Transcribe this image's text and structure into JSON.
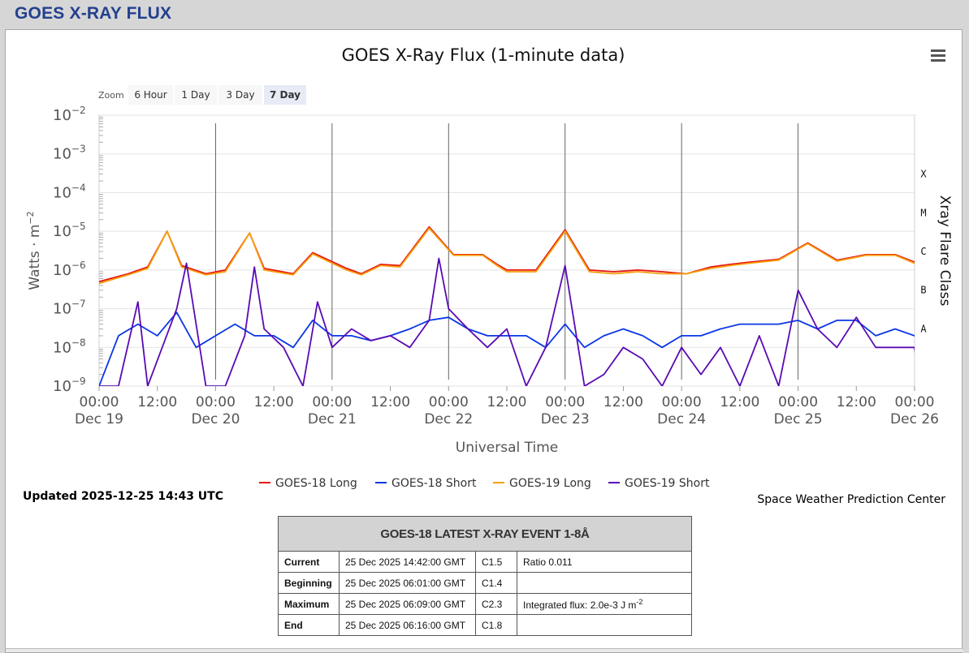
{
  "page": {
    "title": "GOES X-RAY FLUX"
  },
  "chart_data": {
    "type": "line",
    "title": "GOES X-Ray Flux (1-minute data)",
    "xlabel": "Universal Time",
    "ylabel": "Watts · m",
    "ylabel_sup": "−2",
    "right_label": "Xray Flare Class",
    "y_scale": "log",
    "ylim": [
      1e-09,
      0.01
    ],
    "y_ticks": [
      {
        "base": "10",
        "exp": "−2"
      },
      {
        "base": "10",
        "exp": "−3"
      },
      {
        "base": "10",
        "exp": "−4"
      },
      {
        "base": "10",
        "exp": "−5"
      },
      {
        "base": "10",
        "exp": "−6"
      },
      {
        "base": "10",
        "exp": "−7"
      },
      {
        "base": "10",
        "exp": "−8"
      },
      {
        "base": "10",
        "exp": "−9"
      }
    ],
    "flare_classes": [
      "X",
      "M",
      "C",
      "B",
      "A"
    ],
    "x_range": [
      "2025-12-19 00:00",
      "2025-12-26 00:00"
    ],
    "x_ticks": [
      {
        "time": "00:00",
        "date": "Dec 19"
      },
      {
        "time": "12:00",
        "date": ""
      },
      {
        "time": "00:00",
        "date": "Dec 20"
      },
      {
        "time": "12:00",
        "date": ""
      },
      {
        "time": "00:00",
        "date": "Dec 21"
      },
      {
        "time": "12:00",
        "date": ""
      },
      {
        "time": "00:00",
        "date": "Dec 22"
      },
      {
        "time": "12:00",
        "date": ""
      },
      {
        "time": "00:00",
        "date": "Dec 23"
      },
      {
        "time": "12:00",
        "date": ""
      },
      {
        "time": "00:00",
        "date": "Dec 24"
      },
      {
        "time": "12:00",
        "date": ""
      },
      {
        "time": "00:00",
        "date": "Dec 25"
      },
      {
        "time": "12:00",
        "date": ""
      },
      {
        "time": "00:00",
        "date": "Dec 26"
      }
    ],
    "grid": true,
    "legend_position": "bottom-center",
    "series": [
      {
        "name": "GOES-18 Long",
        "color": "#e8140e",
        "x_hours": [
          0,
          6,
          10,
          14,
          17,
          22,
          26,
          31,
          34,
          40,
          44,
          51,
          54,
          58,
          62,
          68,
          73,
          79,
          82,
          84,
          90,
          96,
          101,
          106,
          111,
          116,
          121,
          126,
          130,
          134,
          140,
          146,
          152,
          158,
          164,
          168,
          170
        ],
        "y": [
          5e-07,
          8e-07,
          1.2e-06,
          1e-05,
          1.3e-06,
          8e-07,
          1e-06,
          9e-06,
          1.1e-06,
          8e-07,
          2.8e-06,
          1.1e-06,
          8e-07,
          1.4e-06,
          1.3e-06,
          1.3e-05,
          2.5e-06,
          2.5e-06,
          1.4e-06,
          1e-06,
          1e-06,
          1.1e-05,
          1e-06,
          9e-07,
          1e-06,
          9e-07,
          8e-07,
          1.2e-06,
          1.4e-06,
          1.6e-06,
          1.9e-06,
          5e-06,
          1.8e-06,
          2.5e-06,
          2.5e-06,
          1.6e-06,
          1.6e-06
        ]
      },
      {
        "name": "GOES-18 Short",
        "color": "#0a36e6",
        "x_hours": [
          0,
          4,
          8,
          12,
          16,
          20,
          24,
          28,
          32,
          36,
          40,
          44,
          48,
          52,
          56,
          60,
          64,
          68,
          72,
          76,
          80,
          84,
          88,
          92,
          96,
          100,
          104,
          108,
          112,
          116,
          120,
          124,
          128,
          132,
          136,
          140,
          144,
          148,
          152,
          156,
          160,
          164,
          168,
          170
        ],
        "y": [
          1e-09,
          2e-08,
          4e-08,
          2e-08,
          8e-08,
          1e-08,
          2e-08,
          4e-08,
          2e-08,
          2e-08,
          1e-08,
          5e-08,
          2e-08,
          2e-08,
          1.5e-08,
          2e-08,
          3e-08,
          5e-08,
          6e-08,
          3e-08,
          2e-08,
          2e-08,
          2e-08,
          1e-08,
          4e-08,
          1e-08,
          2e-08,
          3e-08,
          2e-08,
          1e-08,
          2e-08,
          2e-08,
          3e-08,
          4e-08,
          4e-08,
          4e-08,
          5e-08,
          3e-08,
          5e-08,
          5e-08,
          2e-08,
          3e-08,
          2e-08,
          3e-08
        ]
      },
      {
        "name": "GOES-19 Long",
        "color": "#f5a00c",
        "x_hours": [
          0,
          6,
          10,
          14,
          17,
          22,
          26,
          31,
          34,
          40,
          44,
          51,
          54,
          58,
          62,
          68,
          73,
          79,
          82,
          84,
          90,
          96,
          101,
          106,
          111,
          116,
          121,
          126,
          130,
          134,
          140,
          146,
          152,
          158,
          164,
          168,
          170
        ],
        "y": [
          4.5e-07,
          7.5e-07,
          1.1e-06,
          1e-05,
          1.2e-06,
          7.5e-07,
          9e-07,
          9e-06,
          1e-06,
          7.5e-07,
          2.6e-06,
          1e-06,
          7.5e-07,
          1.3e-06,
          1.2e-06,
          1.2e-05,
          2.4e-06,
          2.4e-06,
          1.3e-06,
          9e-07,
          9e-07,
          1e-05,
          9e-07,
          8e-07,
          9e-07,
          8e-07,
          8e-07,
          1.1e-06,
          1.3e-06,
          1.5e-06,
          1.8e-06,
          4.8e-06,
          1.7e-06,
          2.4e-06,
          2.4e-06,
          1.5e-06,
          1.5e-06
        ]
      },
      {
        "name": "GOES-19 Short",
        "color": "#5a0ab4",
        "x_hours": [
          0,
          4,
          8,
          10,
          13,
          16,
          18,
          22,
          26,
          30,
          32,
          34,
          38,
          42,
          45,
          48,
          52,
          56,
          60,
          64,
          68,
          70,
          72,
          76,
          80,
          84,
          88,
          92,
          96,
          100,
          104,
          108,
          112,
          116,
          120,
          124,
          128,
          132,
          136,
          140,
          144,
          148,
          152,
          156,
          160,
          164,
          168,
          169
        ],
        "y": [
          1e-09,
          1e-09,
          1.5e-07,
          1e-09,
          1e-08,
          1e-07,
          1.5e-06,
          1e-09,
          1e-09,
          2e-08,
          1.2e-06,
          3e-08,
          1e-08,
          1e-09,
          1.5e-07,
          1e-08,
          3e-08,
          1.5e-08,
          2e-08,
          1e-08,
          5e-08,
          2e-06,
          1e-07,
          3e-08,
          1e-08,
          3e-08,
          1e-09,
          1e-08,
          1.3e-06,
          1e-09,
          2e-09,
          1e-08,
          5e-09,
          1e-09,
          1e-08,
          2e-09,
          1e-08,
          1e-09,
          2e-08,
          1e-09,
          3e-07,
          3e-08,
          1e-08,
          6e-08,
          1e-08,
          1e-08,
          1e-08,
          1e-09
        ]
      }
    ]
  },
  "zoom": {
    "label": "Zoom",
    "options": [
      "6 Hour",
      "1 Day",
      "3 Day",
      "7 Day"
    ],
    "selected": "7 Day"
  },
  "updated": "Updated 2025-12-25 14:43 UTC",
  "credit": "Space Weather Prediction Center",
  "event_table": {
    "title": "GOES-18 LATEST X-RAY EVENT 1-8Å",
    "rows": [
      {
        "label": "Current",
        "time": "25 Dec 2025 14:42:00 GMT",
        "class": "C1.5",
        "extra": "Ratio 0.011",
        "extra_sup": ""
      },
      {
        "label": "Beginning",
        "time": "25 Dec 2025 06:01:00 GMT",
        "class": "C1.4",
        "extra": "",
        "extra_sup": ""
      },
      {
        "label": "Maximum",
        "time": "25 Dec 2025 06:09:00 GMT",
        "class": "C2.3",
        "extra": "Integrated flux: 2.0e-3 J m",
        "extra_sup": "-2"
      },
      {
        "label": "End",
        "time": "25 Dec 2025 06:16:00 GMT",
        "class": "C1.8",
        "extra": "",
        "extra_sup": ""
      }
    ]
  }
}
